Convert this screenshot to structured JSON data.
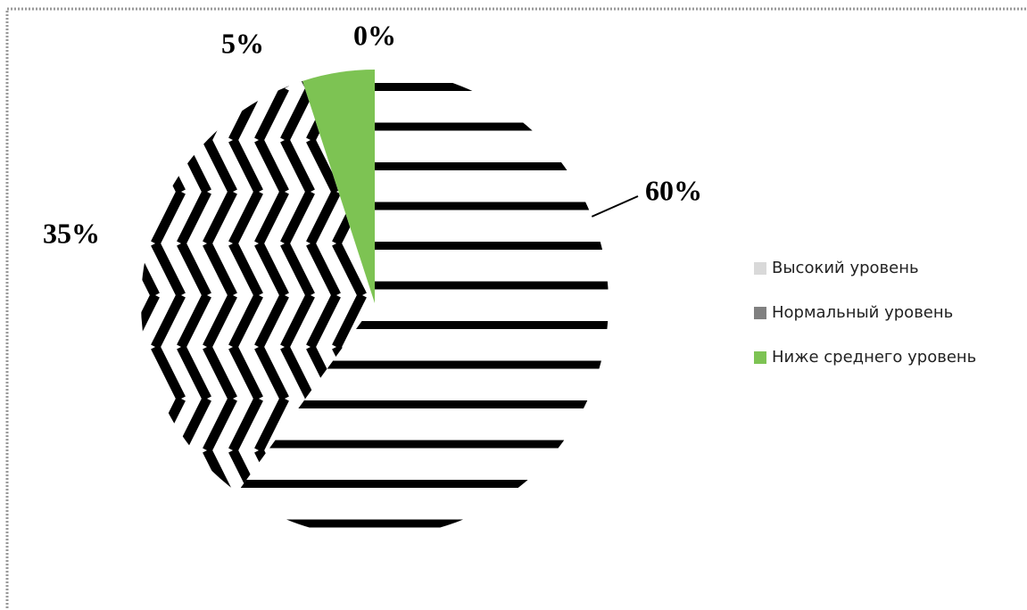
{
  "chart_data": {
    "type": "pie",
    "categories": [
      "Высокий уровень",
      "Нормальный уровень",
      "Ниже среднего уровень",
      null
    ],
    "values": [
      60,
      35,
      5,
      0
    ],
    "value_labels": [
      "60%",
      "35%",
      "5%",
      "0%"
    ],
    "colors": [
      "#d9d9d9",
      "#808080",
      "#7dc353",
      "#7dc353"
    ],
    "fills": [
      "horizontal-stripes",
      "chevron-stripes",
      "solid",
      "solid"
    ],
    "legend": "right"
  }
}
